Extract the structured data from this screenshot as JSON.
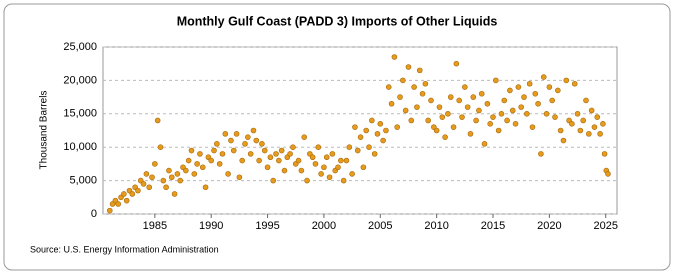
{
  "chart_data": {
    "type": "scatter",
    "title": "Monthly Gulf Coast (PADD 3) Imports of Other Liquids",
    "y_label": "Thousand Barrels",
    "source": "Source: U.S. Energy Information Administration",
    "color": "#e69b1c",
    "grid": true,
    "xlim": [
      1980.4,
      2026
    ],
    "ylim": [
      0,
      25000
    ],
    "xticks": [
      1985,
      1990,
      1995,
      2000,
      2005,
      2010,
      2015,
      2020,
      2025
    ],
    "yticks": [
      0,
      {
        "value": 5000,
        "label": "5,000"
      },
      {
        "value": 10000,
        "label": "10,000"
      },
      {
        "value": 15000,
        "label": "15,000"
      },
      {
        "value": 20000,
        "label": "20,000"
      },
      {
        "value": 25000,
        "label": "25,000"
      }
    ],
    "x": [
      1981,
      1981.25,
      1981.5,
      1981.75,
      1982,
      1982.25,
      1982.5,
      1982.75,
      1983,
      1983.25,
      1983.5,
      1983.75,
      1984,
      1984.25,
      1984.5,
      1984.75,
      1985,
      1985.25,
      1985.5,
      1985.75,
      1986,
      1986.25,
      1986.5,
      1986.75,
      1987,
      1987.25,
      1987.5,
      1987.75,
      1988,
      1988.25,
      1988.5,
      1988.75,
      1989,
      1989.25,
      1989.5,
      1989.75,
      1990,
      1990.25,
      1990.5,
      1990.75,
      1991,
      1991.25,
      1991.5,
      1991.75,
      1992,
      1992.25,
      1992.5,
      1992.75,
      1993,
      1993.25,
      1993.5,
      1993.75,
      1994,
      1994.25,
      1994.5,
      1994.75,
      1995,
      1995.25,
      1995.5,
      1995.75,
      1996,
      1996.25,
      1996.5,
      1996.75,
      1997,
      1997.25,
      1997.5,
      1997.75,
      1998,
      1998.25,
      1998.5,
      1998.75,
      1999,
      1999.25,
      1999.5,
      1999.75,
      2000,
      2000.25,
      2000.5,
      2000.75,
      2001,
      2001.25,
      2001.5,
      2001.75,
      2002,
      2002.25,
      2002.5,
      2002.75,
      2003,
      2003.25,
      2003.5,
      2003.75,
      2004,
      2004.25,
      2004.5,
      2004.75,
      2005,
      2005.25,
      2005.5,
      2005.75,
      2006,
      2006.25,
      2006.5,
      2006.75,
      2007,
      2007.25,
      2007.5,
      2007.75,
      2008,
      2008.25,
      2008.5,
      2008.75,
      2009,
      2009.25,
      2009.5,
      2009.75,
      2010,
      2010.25,
      2010.5,
      2010.75,
      2011,
      2011.25,
      2011.5,
      2011.75,
      2012,
      2012.25,
      2012.5,
      2012.75,
      2013,
      2013.25,
      2013.5,
      2013.75,
      2014,
      2014.25,
      2014.5,
      2014.75,
      2015,
      2015.25,
      2015.5,
      2015.75,
      2016,
      2016.25,
      2016.5,
      2016.75,
      2017,
      2017.25,
      2017.5,
      2017.75,
      2018,
      2018.25,
      2018.5,
      2018.75,
      2019,
      2019.25,
      2019.5,
      2019.75,
      2020,
      2020.25,
      2020.5,
      2020.75,
      2021,
      2021.25,
      2021.5,
      2021.75,
      2022,
      2022.25,
      2022.5,
      2022.75,
      2023,
      2023.25,
      2023.5,
      2023.75,
      2024,
      2024.25,
      2024.5,
      2024.75,
      2024.9,
      2025.05,
      2025.2
    ],
    "values": [
      500,
      1500,
      2000,
      1500,
      2500,
      3000,
      2000,
      3500,
      3000,
      4000,
      3500,
      5000,
      4500,
      6000,
      4000,
      5500,
      7500,
      14000,
      10000,
      5000,
      4000,
      6500,
      5500,
      3000,
      6000,
      5000,
      7000,
      6500,
      8000,
      9500,
      6000,
      7500,
      9000,
      7000,
      4000,
      8500,
      8000,
      9500,
      10500,
      7500,
      9000,
      12000,
      6000,
      11000,
      9500,
      12000,
      5500,
      8000,
      10500,
      11500,
      9000,
      12500,
      11000,
      8000,
      10500,
      9500,
      7000,
      8500,
      5000,
      9000,
      8000,
      9500,
      6500,
      8500,
      9000,
      10000,
      7500,
      8000,
      6500,
      11500,
      5000,
      9000,
      8500,
      7500,
      10000,
      6000,
      7000,
      8500,
      5500,
      9000,
      6500,
      7000,
      8000,
      5000,
      8000,
      10000,
      6000,
      13000,
      9500,
      11500,
      7000,
      12500,
      10000,
      14000,
      9000,
      12000,
      13500,
      11000,
      12500,
      19000,
      16500,
      23500,
      13000,
      17500,
      20000,
      15500,
      22000,
      14000,
      19000,
      16000,
      21500,
      18000,
      19500,
      14000,
      17000,
      13000,
      12500,
      16000,
      14500,
      11500,
      15000,
      17500,
      13000,
      22500,
      17000,
      14500,
      19000,
      16000,
      12000,
      17500,
      14000,
      15500,
      18000,
      10500,
      16500,
      13500,
      14500,
      20000,
      12500,
      15000,
      17000,
      14000,
      18500,
      15500,
      13500,
      19000,
      16000,
      17500,
      15000,
      19500,
      13000,
      18000,
      16500,
      9000,
      20500,
      15000,
      19000,
      17000,
      14500,
      18500,
      12500,
      11000,
      20000,
      14000,
      13500,
      19500,
      15000,
      12500,
      14000,
      17000,
      12000,
      15500,
      13000,
      14500,
      12000,
      13500,
      9000,
      6500,
      6000
    ]
  }
}
